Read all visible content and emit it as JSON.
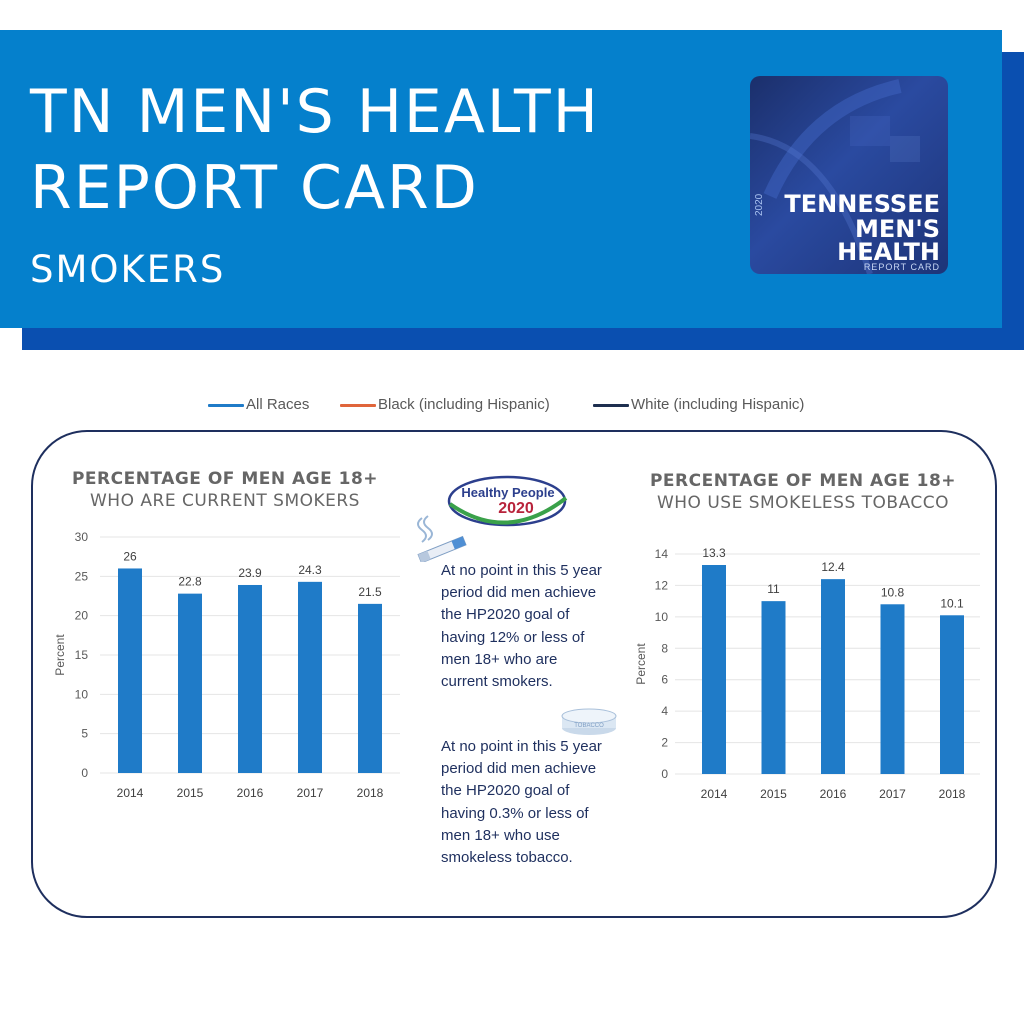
{
  "header": {
    "title_line1": "TN MEN'S HEALTH",
    "title_line2": "REPORT CARD",
    "subtitle": "SMOKERS",
    "logo": {
      "year": "2020",
      "line1": "TENNESSEE",
      "line2": "MEN'S",
      "line3": "HEALTH",
      "line4": "REPORT CARD"
    }
  },
  "legend": [
    {
      "label": "All Races",
      "color": "#1f7bc8"
    },
    {
      "label": "Black (including Hispanic)",
      "color": "#e0653b"
    },
    {
      "label": "White (including Hispanic)",
      "color": "#1e2f4f"
    }
  ],
  "middle": {
    "hp_logo_name": "Healthy People",
    "hp_logo_year": "2020",
    "note1": "At no point in this 5 year period did men achieve the HP2020 goal of having 12% or less of men 18+ who are current smokers.",
    "note2": "At no point in this 5 year period did men achieve the HP2020 goal of having 0.3% or less of men 18+ who use smokeless tobacco.",
    "tin_label": "TOBACCO"
  },
  "chart_data": [
    {
      "type": "bar",
      "title_line1": "PERCENTAGE OF MEN AGE 18+",
      "title_line2": "WHO ARE CURRENT SMOKERS",
      "ylabel": "Percent",
      "xlabel": "",
      "categories": [
        "2014",
        "2015",
        "2016",
        "2017",
        "2018"
      ],
      "values": [
        26,
        22.8,
        23.9,
        24.3,
        21.5
      ],
      "value_labels": [
        "26",
        "22.8",
        "23.9",
        "24.3",
        "21.5"
      ],
      "ylim": [
        0,
        30
      ],
      "yticks": [
        0,
        5,
        10,
        15,
        20,
        25,
        30
      ],
      "grid": true,
      "color": "#1f7bc8"
    },
    {
      "type": "bar",
      "title_line1": "PERCENTAGE OF MEN AGE 18+",
      "title_line2": "WHO USE SMOKELESS TOBACCO",
      "ylabel": "Percent",
      "xlabel": "",
      "categories": [
        "2014",
        "2015",
        "2016",
        "2017",
        "2018"
      ],
      "values": [
        13.3,
        11,
        12.4,
        10.8,
        10.1
      ],
      "value_labels": [
        "13.3",
        "11",
        "12.4",
        "10.8",
        "10.1"
      ],
      "ylim": [
        0,
        14
      ],
      "yticks": [
        0,
        2,
        4,
        6,
        8,
        10,
        12,
        14
      ],
      "grid": true,
      "color": "#1f7bc8"
    }
  ]
}
